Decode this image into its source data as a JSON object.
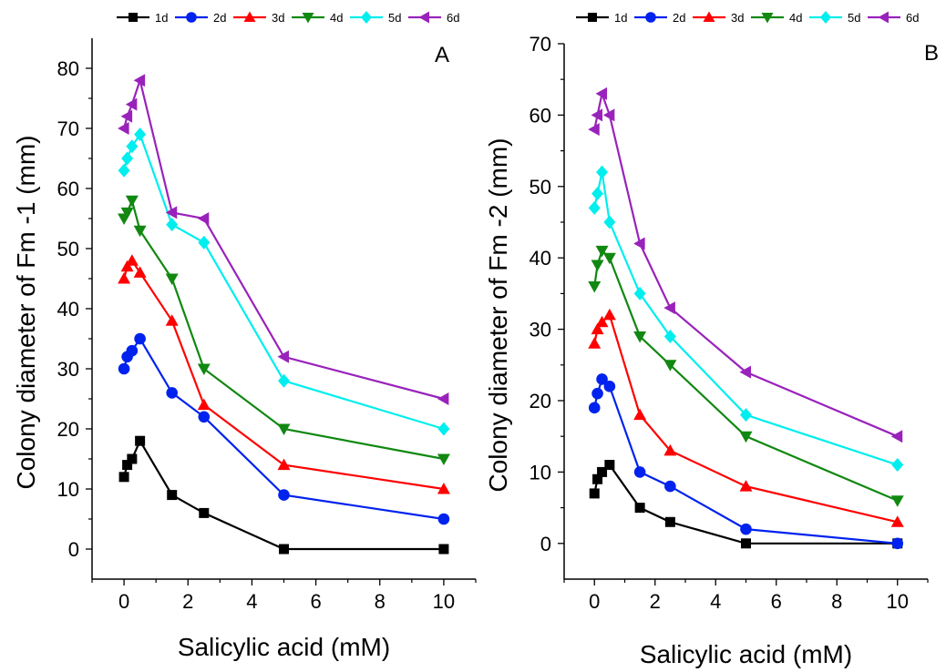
{
  "legend_labels": [
    "1d",
    "2d",
    "3d",
    "4d",
    "5d",
    "6d"
  ],
  "series_colors": [
    "#000000",
    "#0022ee",
    "#ff0000",
    "#118811",
    "#00eeee",
    "#9922bb"
  ],
  "series_markers": [
    "square",
    "circle",
    "triangle-up",
    "triangle-down",
    "diamond",
    "triangle-left"
  ],
  "chart_data": [
    {
      "type": "line",
      "panel_label": "A",
      "xlabel": "Salicylic acid (mM)",
      "ylabel": "Colony diameter of Fm -1 (mm)",
      "xlim": [
        -1,
        11
      ],
      "ylim": [
        -5,
        85
      ],
      "xticks": [
        0,
        2,
        4,
        6,
        8,
        10
      ],
      "yticks": [
        0,
        10,
        20,
        30,
        40,
        50,
        60,
        70,
        80
      ],
      "x": [
        0,
        0.1,
        0.25,
        0.5,
        1.5,
        2.5,
        5,
        10
      ],
      "series": [
        {
          "name": "1d",
          "values": [
            12,
            14,
            15,
            18,
            9,
            6,
            0,
            0
          ]
        },
        {
          "name": "2d",
          "values": [
            30,
            32,
            33,
            35,
            26,
            22,
            9,
            5
          ]
        },
        {
          "name": "3d",
          "values": [
            45,
            47,
            48,
            46,
            38,
            24,
            14,
            10
          ]
        },
        {
          "name": "4d",
          "values": [
            55,
            56,
            58,
            53,
            45,
            30,
            20,
            15
          ]
        },
        {
          "name": "5d",
          "values": [
            63,
            65,
            67,
            69,
            54,
            51,
            28,
            20
          ]
        },
        {
          "name": "6d",
          "values": [
            70,
            72,
            74,
            78,
            56,
            55,
            32,
            25
          ]
        }
      ]
    },
    {
      "type": "line",
      "panel_label": "B",
      "xlabel": "Salicylic acid (mM)",
      "ylabel": "Colony diameter of Fm -2 (mm)",
      "xlim": [
        -1,
        11
      ],
      "ylim": [
        -5,
        70
      ],
      "xticks": [
        0,
        2,
        4,
        6,
        8,
        10
      ],
      "yticks": [
        0,
        10,
        20,
        30,
        40,
        50,
        60,
        70
      ],
      "x": [
        0,
        0.1,
        0.25,
        0.5,
        1.5,
        2.5,
        5,
        10
      ],
      "series": [
        {
          "name": "1d",
          "values": [
            7,
            9,
            10,
            11,
            5,
            3,
            0,
            0
          ]
        },
        {
          "name": "2d",
          "values": [
            19,
            21,
            23,
            22,
            10,
            8,
            2,
            0
          ]
        },
        {
          "name": "3d",
          "values": [
            28,
            30,
            31,
            32,
            18,
            13,
            8,
            3
          ]
        },
        {
          "name": "4d",
          "values": [
            36,
            39,
            41,
            40,
            29,
            25,
            15,
            6
          ]
        },
        {
          "name": "5d",
          "values": [
            47,
            49,
            52,
            45,
            35,
            29,
            18,
            11
          ]
        },
        {
          "name": "6d",
          "values": [
            58,
            60,
            63,
            60,
            42,
            33,
            24,
            15
          ]
        }
      ]
    }
  ]
}
